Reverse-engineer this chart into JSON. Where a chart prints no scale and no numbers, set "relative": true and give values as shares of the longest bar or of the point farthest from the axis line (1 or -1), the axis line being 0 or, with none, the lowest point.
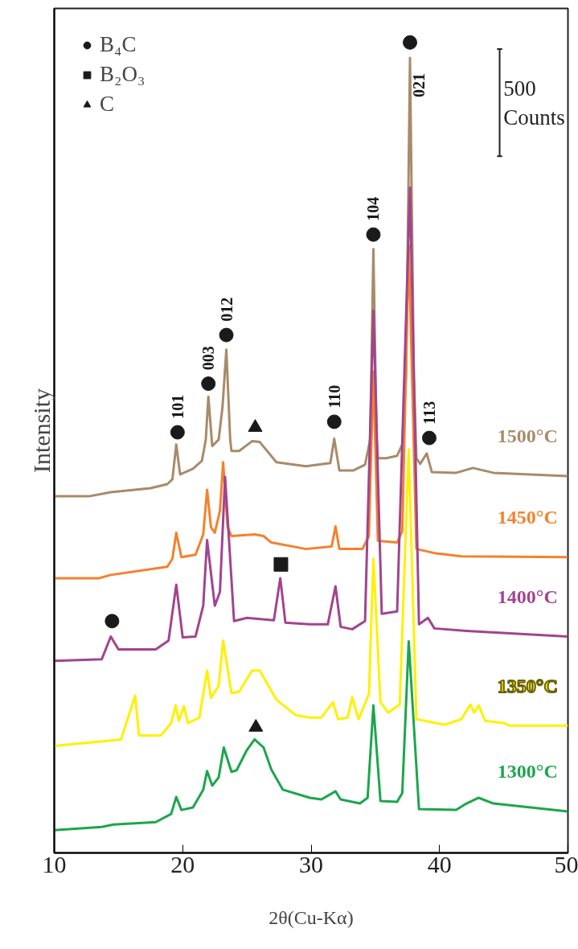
{
  "chart_data": {
    "type": "line",
    "relative": true,
    "xlabel": "2θ(Cu-Kα)",
    "ylabel": "Intensity",
    "xlim": [
      10,
      50
    ],
    "xticks": [
      10,
      20,
      30,
      40,
      50
    ],
    "grid": false,
    "legend": "top left",
    "tick_labels": "x",
    "series": [
      {
        "name": "1500°C",
        "color": "#a88b69",
        "x": [
          10,
          12.7,
          14.4,
          17.5,
          18.8,
          19.2,
          19.5,
          19.8,
          20.8,
          21.5,
          21.8,
          22.0,
          22.3,
          22.8,
          23.1,
          23.4,
          23.7,
          23.8,
          24.4,
          25.4,
          26.0,
          27.3,
          29.6,
          31.5,
          31.8,
          32.2,
          33.3,
          34.2,
          34.6,
          34.85,
          35.1,
          35.2,
          35.85,
          36.7,
          37.1,
          37.4,
          37.7,
          38.0,
          38.2,
          38.5,
          39.0,
          39.4,
          41.3,
          42.6,
          44.2,
          50
        ],
        "values": [
          0.44,
          0.44,
          0.445,
          0.45,
          0.455,
          0.461,
          0.504,
          0.467,
          0.474,
          0.484,
          0.51,
          0.563,
          0.502,
          0.51,
          0.55,
          0.621,
          0.51,
          0.496,
          0.496,
          0.508,
          0.507,
          0.482,
          0.477,
          0.481,
          0.511,
          0.472,
          0.472,
          0.479,
          0.51,
          0.745,
          0.51,
          0.487,
          0.487,
          0.49,
          0.504,
          0.589,
          0.981,
          0.589,
          0.487,
          0.48,
          0.493,
          0.47,
          0.469,
          0.475,
          0.469,
          0.465
        ]
      },
      {
        "name": "1450°C",
        "color": "#f5812c",
        "x": [
          10,
          13.5,
          14.4,
          18.8,
          19.2,
          19.5,
          19.9,
          21.0,
          21.6,
          21.9,
          22.2,
          22.5,
          22.9,
          23.15,
          23.5,
          23.8,
          25.6,
          26.3,
          26.9,
          29.6,
          31.6,
          31.9,
          32.2,
          34.0,
          34.5,
          34.85,
          35.2,
          36.7,
          37.1,
          37.6,
          38.2,
          39.6,
          41.7,
          50
        ],
        "values": [
          0.339,
          0.339,
          0.343,
          0.353,
          0.363,
          0.395,
          0.365,
          0.368,
          0.393,
          0.448,
          0.402,
          0.395,
          0.422,
          0.482,
          0.402,
          0.391,
          0.393,
          0.391,
          0.383,
          0.375,
          0.378,
          0.403,
          0.375,
          0.375,
          0.391,
          0.594,
          0.385,
          0.383,
          0.397,
          0.75,
          0.375,
          0.37,
          0.366,
          0.365
        ]
      },
      {
        "name": "1400°C",
        "color": "#a2448f",
        "x": [
          10,
          13.7,
          14.4,
          15.0,
          17.9,
          18.9,
          19.5,
          20.0,
          21.0,
          21.6,
          21.9,
          22.5,
          22.9,
          23.3,
          24.0,
          25.0,
          27.1,
          27.6,
          28.0,
          29.9,
          31.3,
          31.9,
          32.3,
          33.2,
          34.2,
          34.85,
          35.5,
          36.7,
          37.7,
          38.4,
          39.1,
          39.6,
          42.1,
          50
        ],
        "values": [
          0.237,
          0.239,
          0.267,
          0.251,
          0.251,
          0.262,
          0.331,
          0.266,
          0.267,
          0.305,
          0.386,
          0.305,
          0.322,
          0.464,
          0.286,
          0.29,
          0.287,
          0.339,
          0.284,
          0.282,
          0.282,
          0.329,
          0.279,
          0.276,
          0.286,
          0.669,
          0.295,
          0.298,
          0.821,
          0.282,
          0.29,
          0.277,
          0.274,
          0.267
        ]
      },
      {
        "name": "1350°C",
        "color": "#fff000",
        "x": [
          10,
          15.2,
          16.3,
          16.6,
          18.3,
          19.1,
          19.45,
          19.7,
          20.1,
          20.4,
          21.3,
          21.9,
          22.2,
          22.8,
          23.15,
          23.8,
          24.4,
          25.4,
          26.0,
          27.3,
          28.8,
          29.9,
          30.8,
          31.7,
          32.1,
          32.85,
          33.2,
          33.7,
          34.5,
          34.85,
          35.4,
          36.0,
          36.9,
          37.6,
          38.2,
          40.4,
          41.7,
          42.4,
          42.7,
          43.05,
          43.55,
          45.05,
          45.4,
          50
        ],
        "values": [
          0.132,
          0.14,
          0.194,
          0.145,
          0.145,
          0.16,
          0.182,
          0.163,
          0.181,
          0.16,
          0.167,
          0.225,
          0.191,
          0.206,
          0.262,
          0.197,
          0.199,
          0.225,
          0.225,
          0.189,
          0.17,
          0.167,
          0.167,
          0.186,
          0.165,
          0.167,
          0.192,
          0.165,
          0.196,
          0.363,
          0.186,
          0.173,
          0.183,
          0.498,
          0.165,
          0.158,
          0.165,
          0.183,
          0.173,
          0.182,
          0.163,
          0.16,
          0.157,
          0.157
        ]
      },
      {
        "name": "1300°C",
        "color": "#1ca64b",
        "x": [
          10,
          13.7,
          14.6,
          17.9,
          19.1,
          19.5,
          19.9,
          20.8,
          21.6,
          21.9,
          22.3,
          22.8,
          23.2,
          23.8,
          24.2,
          25.0,
          25.6,
          26.3,
          26.9,
          27.8,
          29.9,
          30.8,
          31.9,
          32.3,
          33.8,
          34.4,
          34.85,
          35.4,
          36.7,
          37.1,
          37.6,
          38.4,
          41.3,
          42.1,
          43.05,
          44.2,
          50
        ],
        "values": [
          0.028,
          0.032,
          0.035,
          0.038,
          0.048,
          0.069,
          0.053,
          0.056,
          0.078,
          0.101,
          0.083,
          0.093,
          0.13,
          0.1,
          0.102,
          0.127,
          0.14,
          0.13,
          0.103,
          0.078,
          0.068,
          0.066,
          0.076,
          0.066,
          0.061,
          0.068,
          0.182,
          0.064,
          0.063,
          0.074,
          0.261,
          0.054,
          0.053,
          0.061,
          0.068,
          0.061,
          0.051
        ]
      },
      {
        "name": "B₄C",
        "type": "scatter",
        "marker": "circle",
        "color": "#1a1a1a",
        "x": [
          14.5,
          19.6,
          22.0,
          23.4,
          31.8,
          34.85,
          37.7,
          39.2
        ],
        "values": [
          0.286,
          0.519,
          0.579,
          0.639,
          0.532,
          0.763,
          1.0,
          0.512
        ]
      },
      {
        "name": "B₂O₃",
        "type": "scatter",
        "marker": "square",
        "color": "#1a1a1a",
        "x": [
          27.65
        ],
        "values": [
          0.356
        ]
      },
      {
        "name": "C",
        "type": "scatter",
        "marker": "triangle",
        "color": "#1a1a1a",
        "x": [
          25.65,
          25.7
        ],
        "values": [
          0.525,
          0.155
        ]
      }
    ],
    "annotations": [
      {
        "text": "101",
        "x": 19.6,
        "y": 0.519
      },
      {
        "text": "003",
        "x": 22.0,
        "y": 0.579
      },
      {
        "text": "012",
        "x": 23.4,
        "y": 0.639
      },
      {
        "text": "110",
        "x": 31.8,
        "y": 0.532
      },
      {
        "text": "104",
        "x": 34.85,
        "y": 0.763
      },
      {
        "text": "021",
        "x": 37.7,
        "y": 1.0
      },
      {
        "text": "113",
        "x": 39.2,
        "y": 0.512
      },
      "500 Counts"
    ]
  }
}
